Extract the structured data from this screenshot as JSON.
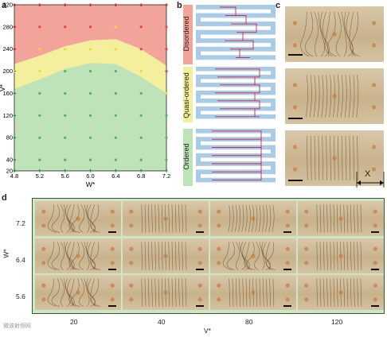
{
  "panel_a": {
    "letter": "a",
    "chart_data": {
      "type": "scatter",
      "xlabel": "W*",
      "ylabel": "V*",
      "xlim": [
        4.8,
        7.2
      ],
      "ylim": [
        20,
        320
      ],
      "x_ticks": [
        "4.8",
        "5.2",
        "5.6",
        "6.0",
        "6.4",
        "6.8",
        "7.2"
      ],
      "y_ticks": [
        "20",
        "40",
        "80",
        "120",
        "160",
        "200",
        "240",
        "280",
        "320"
      ],
      "region_colors": {
        "disordered": "#f2a49a",
        "quasi": "#f3ef9c",
        "ordered": "#bfe3b8"
      },
      "series": [
        {
          "name": "Disordered",
          "color": "#e8423c",
          "points": [
            [
              5.2,
              320
            ],
            [
              5.6,
              320
            ],
            [
              6.0,
              320
            ],
            [
              6.4,
              320
            ],
            [
              6.8,
              320
            ],
            [
              7.2,
              320
            ],
            [
              4.8,
              320
            ],
            [
              5.2,
              280
            ],
            [
              5.6,
              280
            ],
            [
              6.0,
              280
            ],
            [
              6.8,
              280
            ],
            [
              7.2,
              280
            ],
            [
              4.8,
              280
            ],
            [
              4.8,
              240
            ],
            [
              6.8,
              240
            ],
            [
              7.2,
              240
            ],
            [
              7.2,
              200
            ]
          ]
        },
        {
          "name": "Quasi-ordered",
          "color": "#e8dc3c",
          "points": [
            [
              5.2,
              240
            ],
            [
              5.6,
              240
            ],
            [
              6.0,
              240
            ],
            [
              6.4,
              280
            ],
            [
              6.4,
              240
            ],
            [
              4.8,
              200
            ],
            [
              5.2,
              200
            ],
            [
              6.8,
              200
            ],
            [
              7.2,
              160
            ]
          ]
        },
        {
          "name": "Ordered",
          "color": "#4db853",
          "points": [
            [
              5.6,
              200
            ],
            [
              6.0,
              200
            ],
            [
              6.4,
              200
            ],
            [
              4.8,
              160
            ],
            [
              5.2,
              160
            ],
            [
              5.6,
              160
            ],
            [
              6.0,
              160
            ],
            [
              6.4,
              160
            ],
            [
              6.8,
              160
            ],
            [
              4.8,
              120
            ],
            [
              5.2,
              120
            ],
            [
              5.6,
              120
            ],
            [
              6.0,
              120
            ],
            [
              6.4,
              120
            ],
            [
              6.8,
              120
            ],
            [
              7.2,
              120
            ],
            [
              4.8,
              80
            ],
            [
              5.2,
              80
            ],
            [
              5.6,
              80
            ],
            [
              6.0,
              80
            ],
            [
              6.4,
              80
            ],
            [
              6.8,
              80
            ],
            [
              7.2,
              80
            ],
            [
              4.8,
              40
            ],
            [
              5.2,
              40
            ],
            [
              5.6,
              40
            ],
            [
              6.0,
              40
            ],
            [
              6.4,
              40
            ],
            [
              6.8,
              40
            ],
            [
              7.2,
              40
            ],
            [
              4.8,
              20
            ],
            [
              5.2,
              20
            ],
            [
              5.6,
              20
            ],
            [
              6.0,
              20
            ],
            [
              6.4,
              20
            ],
            [
              6.8,
              20
            ],
            [
              7.2,
              20
            ]
          ]
        }
      ]
    }
  },
  "panel_b": {
    "letter": "b",
    "labels": [
      "Disordered",
      "Quasi-ordered",
      "Ordered"
    ],
    "label_colors": [
      "#f2a49a",
      "#f3ef9c",
      "#bfe3b8"
    ],
    "channel_color": "#a9cbe8",
    "path_color": "#d0283c"
  },
  "panel_c": {
    "letter": "c",
    "x_marker": "X"
  },
  "panel_d": {
    "letter": "d",
    "ylabel": "W*",
    "xlabel": "V*",
    "row_labels": [
      "7.2",
      "6.4",
      "5.6"
    ],
    "col_labels": [
      "20",
      "40",
      "80",
      "120"
    ],
    "border_color": "#cfe6c6"
  },
  "watermark": "微波射频网"
}
